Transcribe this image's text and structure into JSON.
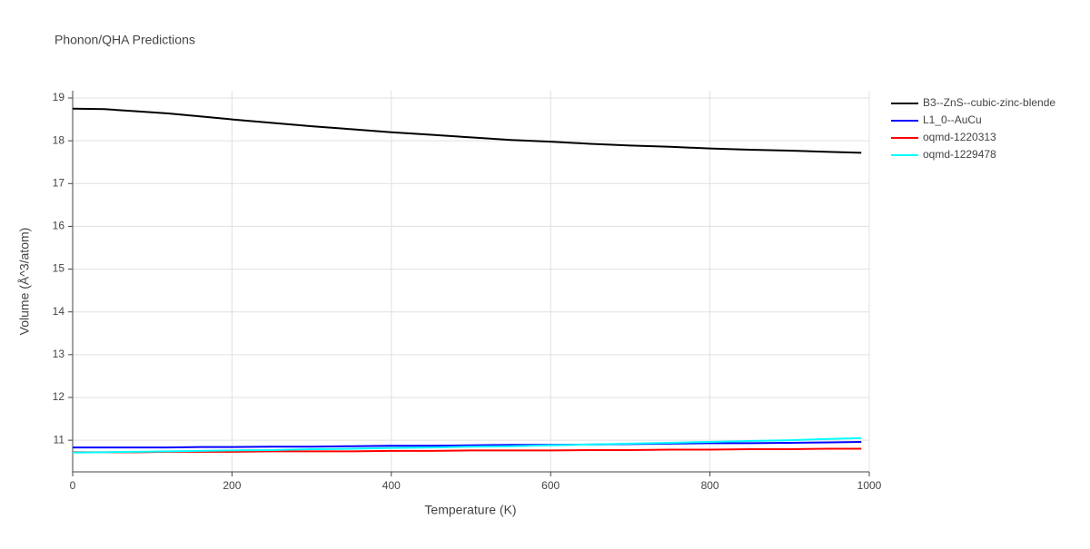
{
  "chart_data": {
    "type": "line",
    "title": "Phonon/QHA Predictions",
    "x_label": "Temperature (K)",
    "y_label": "Volume (Å^3/atom)",
    "x": [
      0,
      40,
      80,
      120,
      160,
      200,
      250,
      300,
      350,
      400,
      450,
      500,
      550,
      600,
      650,
      700,
      750,
      800,
      850,
      900,
      950,
      990
    ],
    "series": [
      {
        "name": "B3--ZnS--cubic-zinc-blende",
        "color": "#000000",
        "values": [
          18.75,
          18.74,
          18.69,
          18.64,
          18.57,
          18.5,
          18.42,
          18.34,
          18.27,
          18.2,
          18.14,
          18.08,
          18.02,
          17.98,
          17.93,
          17.89,
          17.86,
          17.82,
          17.79,
          17.77,
          17.74,
          17.72
        ]
      },
      {
        "name": "L1_0--AuCu",
        "color": "#0000ff",
        "values": [
          10.83,
          10.83,
          10.83,
          10.83,
          10.84,
          10.84,
          10.85,
          10.85,
          10.86,
          10.87,
          10.87,
          10.88,
          10.89,
          10.89,
          10.9,
          10.91,
          10.92,
          10.93,
          10.93,
          10.94,
          10.95,
          10.96
        ]
      },
      {
        "name": "oqmd-1220313",
        "color": "#ff0000",
        "values": [
          10.72,
          10.72,
          10.72,
          10.73,
          10.73,
          10.73,
          10.74,
          10.74,
          10.74,
          10.75,
          10.75,
          10.76,
          10.76,
          10.76,
          10.77,
          10.77,
          10.78,
          10.78,
          10.79,
          10.79,
          10.8,
          10.8
        ]
      },
      {
        "name": "oqmd-1229478",
        "color": "#00ffff",
        "values": [
          10.71,
          10.72,
          10.73,
          10.74,
          10.75,
          10.76,
          10.77,
          10.79,
          10.8,
          10.82,
          10.83,
          10.85,
          10.86,
          10.88,
          10.9,
          10.92,
          10.94,
          10.96,
          10.98,
          11.0,
          11.03,
          11.05
        ]
      }
    ],
    "xlim": [
      0,
      1000
    ],
    "xticks": [
      0,
      200,
      400,
      600,
      800,
      1000
    ],
    "ylim": [
      10.26,
      19.17
    ],
    "yticks": [
      11,
      12,
      13,
      14,
      15,
      16,
      17,
      18,
      19
    ],
    "grid": true,
    "legend": "right"
  }
}
